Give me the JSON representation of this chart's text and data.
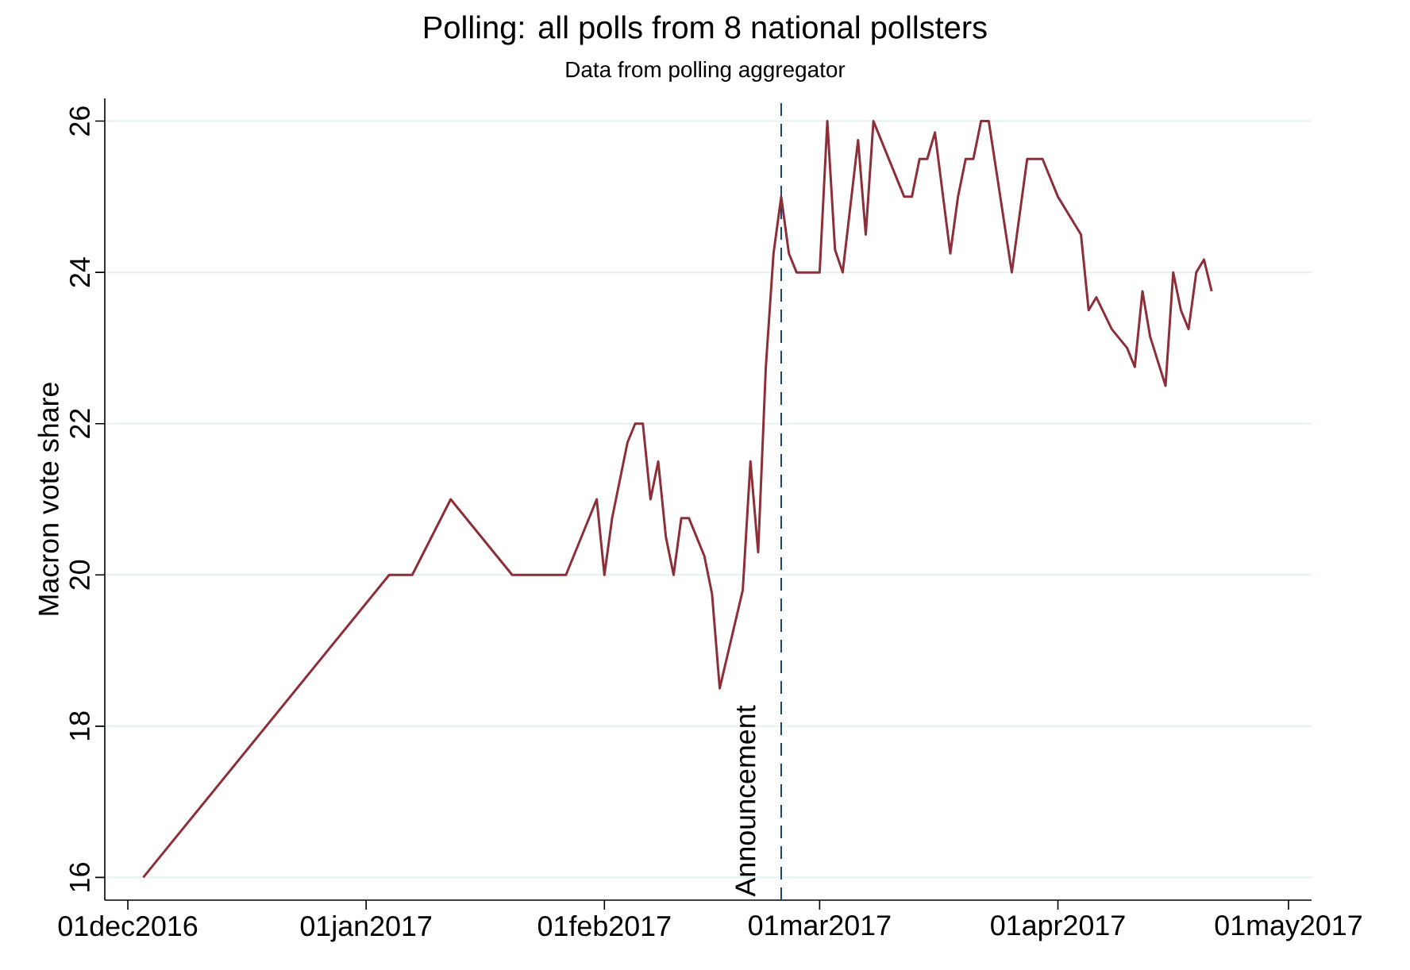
{
  "chart_data": {
    "type": "line",
    "title": "Polling: all polls from 8 national pollsters",
    "subtitle": "Data from polling aggregator",
    "ylabel": "Macron vote share",
    "x": [
      "2016-12-03",
      "2017-01-04",
      "2017-01-07",
      "2017-01-12",
      "2017-01-20",
      "2017-01-27",
      "2017-01-31",
      "2017-02-01",
      "2017-02-02",
      "2017-02-04",
      "2017-02-05",
      "2017-02-06",
      "2017-02-07",
      "2017-02-08",
      "2017-02-09",
      "2017-02-10",
      "2017-02-11",
      "2017-02-12",
      "2017-02-14",
      "2017-02-15",
      "2017-02-16",
      "2017-02-19",
      "2017-02-20",
      "2017-02-21",
      "2017-02-22",
      "2017-02-23",
      "2017-02-24",
      "2017-02-25",
      "2017-02-26",
      "2017-03-01",
      "2017-03-02",
      "2017-03-03",
      "2017-03-04",
      "2017-03-06",
      "2017-03-07",
      "2017-03-08",
      "2017-03-12",
      "2017-03-13",
      "2017-03-14",
      "2017-03-15",
      "2017-03-16",
      "2017-03-18",
      "2017-03-19",
      "2017-03-20",
      "2017-03-21",
      "2017-03-22",
      "2017-03-23",
      "2017-03-26",
      "2017-03-28",
      "2017-03-30",
      "2017-04-01",
      "2017-04-04",
      "2017-04-05",
      "2017-04-06",
      "2017-04-08",
      "2017-04-10",
      "2017-04-11",
      "2017-04-12",
      "2017-04-13",
      "2017-04-15",
      "2017-04-16",
      "2017-04-17",
      "2017-04-18",
      "2017-04-19",
      "2017-04-20",
      "2017-04-21"
    ],
    "series": [
      {
        "color": "#8c2f39",
        "values": [
          16,
          20,
          20,
          21,
          20,
          20,
          21,
          20,
          20.75,
          21.75,
          22,
          22,
          21,
          21.5,
          20.5,
          20,
          20.75,
          20.75,
          20.25,
          19.75,
          18.5,
          19.8,
          21.5,
          20.3,
          22.75,
          24.25,
          25,
          24.25,
          24,
          24,
          26,
          24.3,
          24,
          25.75,
          24.5,
          26,
          25,
          25,
          25.5,
          25.5,
          25.85,
          24.25,
          25,
          25.5,
          25.5,
          26,
          26,
          24,
          25.5,
          25.5,
          25,
          24.5,
          23.5,
          23.67,
          23.25,
          23,
          22.75,
          23.75,
          23.15,
          22.5,
          24,
          23.5,
          23.25,
          24,
          24.17,
          23.75
        ]
      }
    ],
    "xlim": [
      "2016-11-28",
      "2017-05-04"
    ],
    "xticks": [
      {
        "value": "2016-12-01",
        "label": "01dec2016"
      },
      {
        "value": "2017-01-01",
        "label": "01jan2017"
      },
      {
        "value": "2017-02-01",
        "label": "01feb2017"
      },
      {
        "value": "2017-03-01",
        "label": "01mar2017"
      },
      {
        "value": "2017-04-01",
        "label": "01apr2017"
      },
      {
        "value": "2017-05-01",
        "label": "01may2017"
      }
    ],
    "ylim": [
      15.7,
      26.3
    ],
    "yticks": [
      16,
      18,
      20,
      22,
      24,
      26
    ],
    "grid": "y",
    "marker": "none",
    "line_style": "solid",
    "ref_lines": [
      {
        "axis": "x",
        "value": "2017-02-24",
        "label": "Announcement",
        "color": "#1a476f",
        "line_style": "dashed"
      }
    ]
  }
}
